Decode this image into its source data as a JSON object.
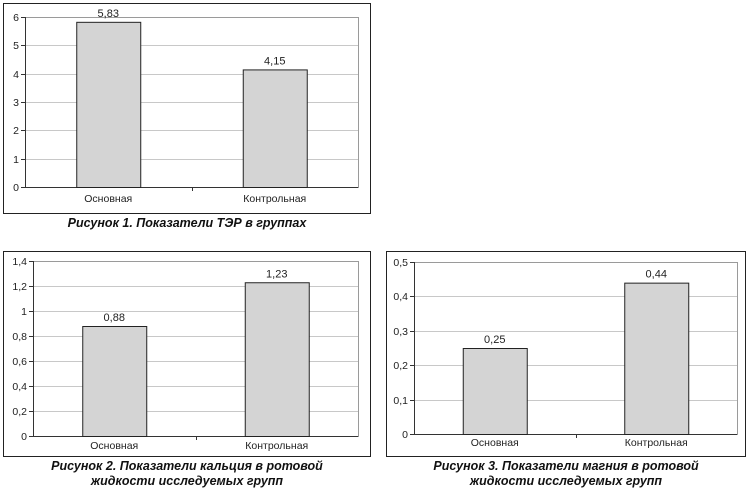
{
  "figures": [
    {
      "caption": "Рисунок 1. Показатели ТЭР в группах"
    },
    {
      "caption": "Рисунок 2. Показатели кальция в ротовой жидкости исследуемых групп"
    },
    {
      "caption": "Рисунок 3. Показатели магния в ротовой жидкости исследуемых групп"
    }
  ],
  "colors": {
    "bar_fill": "#d4d4d4",
    "bar_stroke": "#222222",
    "grid": "#c8c8c8"
  },
  "chart_data": [
    {
      "type": "bar",
      "title": "",
      "categories": [
        "Основная",
        "Контрольная"
      ],
      "values": [
        5.83,
        4.15
      ],
      "value_labels": [
        "5,83",
        "4,15"
      ],
      "ylim": [
        0,
        6
      ],
      "yticks": [
        0,
        1,
        2,
        3,
        4,
        5,
        6
      ],
      "ytick_labels": [
        "0",
        "1",
        "2",
        "3",
        "4",
        "5",
        "6"
      ],
      "grid": true
    },
    {
      "type": "bar",
      "title": "",
      "categories": [
        "Основная",
        "Контрольная"
      ],
      "values": [
        0.88,
        1.23
      ],
      "value_labels": [
        "0,88",
        "1,23"
      ],
      "ylim": [
        0,
        1.4
      ],
      "yticks": [
        0,
        0.2,
        0.4,
        0.6,
        0.8,
        1,
        1.2,
        1.4
      ],
      "ytick_labels": [
        "0",
        "0,2",
        "0,4",
        "0,6",
        "0,8",
        "1",
        "1,2",
        "1,4"
      ],
      "grid": true
    },
    {
      "type": "bar",
      "title": "",
      "categories": [
        "Основная",
        "Контрольная"
      ],
      "values": [
        0.25,
        0.44
      ],
      "value_labels": [
        "0,25",
        "0,44"
      ],
      "ylim": [
        0,
        0.5
      ],
      "yticks": [
        0,
        0.1,
        0.2,
        0.3,
        0.4,
        0.5
      ],
      "ytick_labels": [
        "0",
        "0,1",
        "0,2",
        "0,3",
        "0,4",
        "0,5"
      ],
      "grid": true
    }
  ]
}
